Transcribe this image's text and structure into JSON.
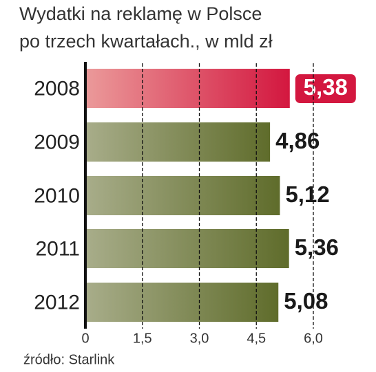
{
  "chart_data": {
    "type": "hbar",
    "title": [
      "Wydatki na reklamę w Polsce",
      "po trzech kwartałach., w mld zł"
    ],
    "categories": [
      "2008",
      "2009",
      "2010",
      "2011",
      "2012"
    ],
    "values": [
      5.38,
      4.86,
      5.12,
      5.36,
      5.08
    ],
    "value_labels": [
      "5,38",
      "4,86",
      "5,12",
      "5,36",
      "5,08"
    ],
    "colors": [
      "#d3173f",
      "#5f6c2b",
      "#5f6c2b",
      "#5f6c2b",
      "#5f6c2b"
    ],
    "highlight": [
      true,
      false,
      false,
      false,
      false
    ],
    "xlim": [
      0,
      6
    ],
    "xticks": [
      0,
      {
        "value": 1.5,
        "label": "1,5"
      },
      {
        "value": 3,
        "label": "3,0"
      },
      {
        "value": 4.5,
        "label": "4,5"
      },
      {
        "value": 6,
        "label": "6,0"
      }
    ],
    "grid": true,
    "source": "źródło: Starlink"
  }
}
